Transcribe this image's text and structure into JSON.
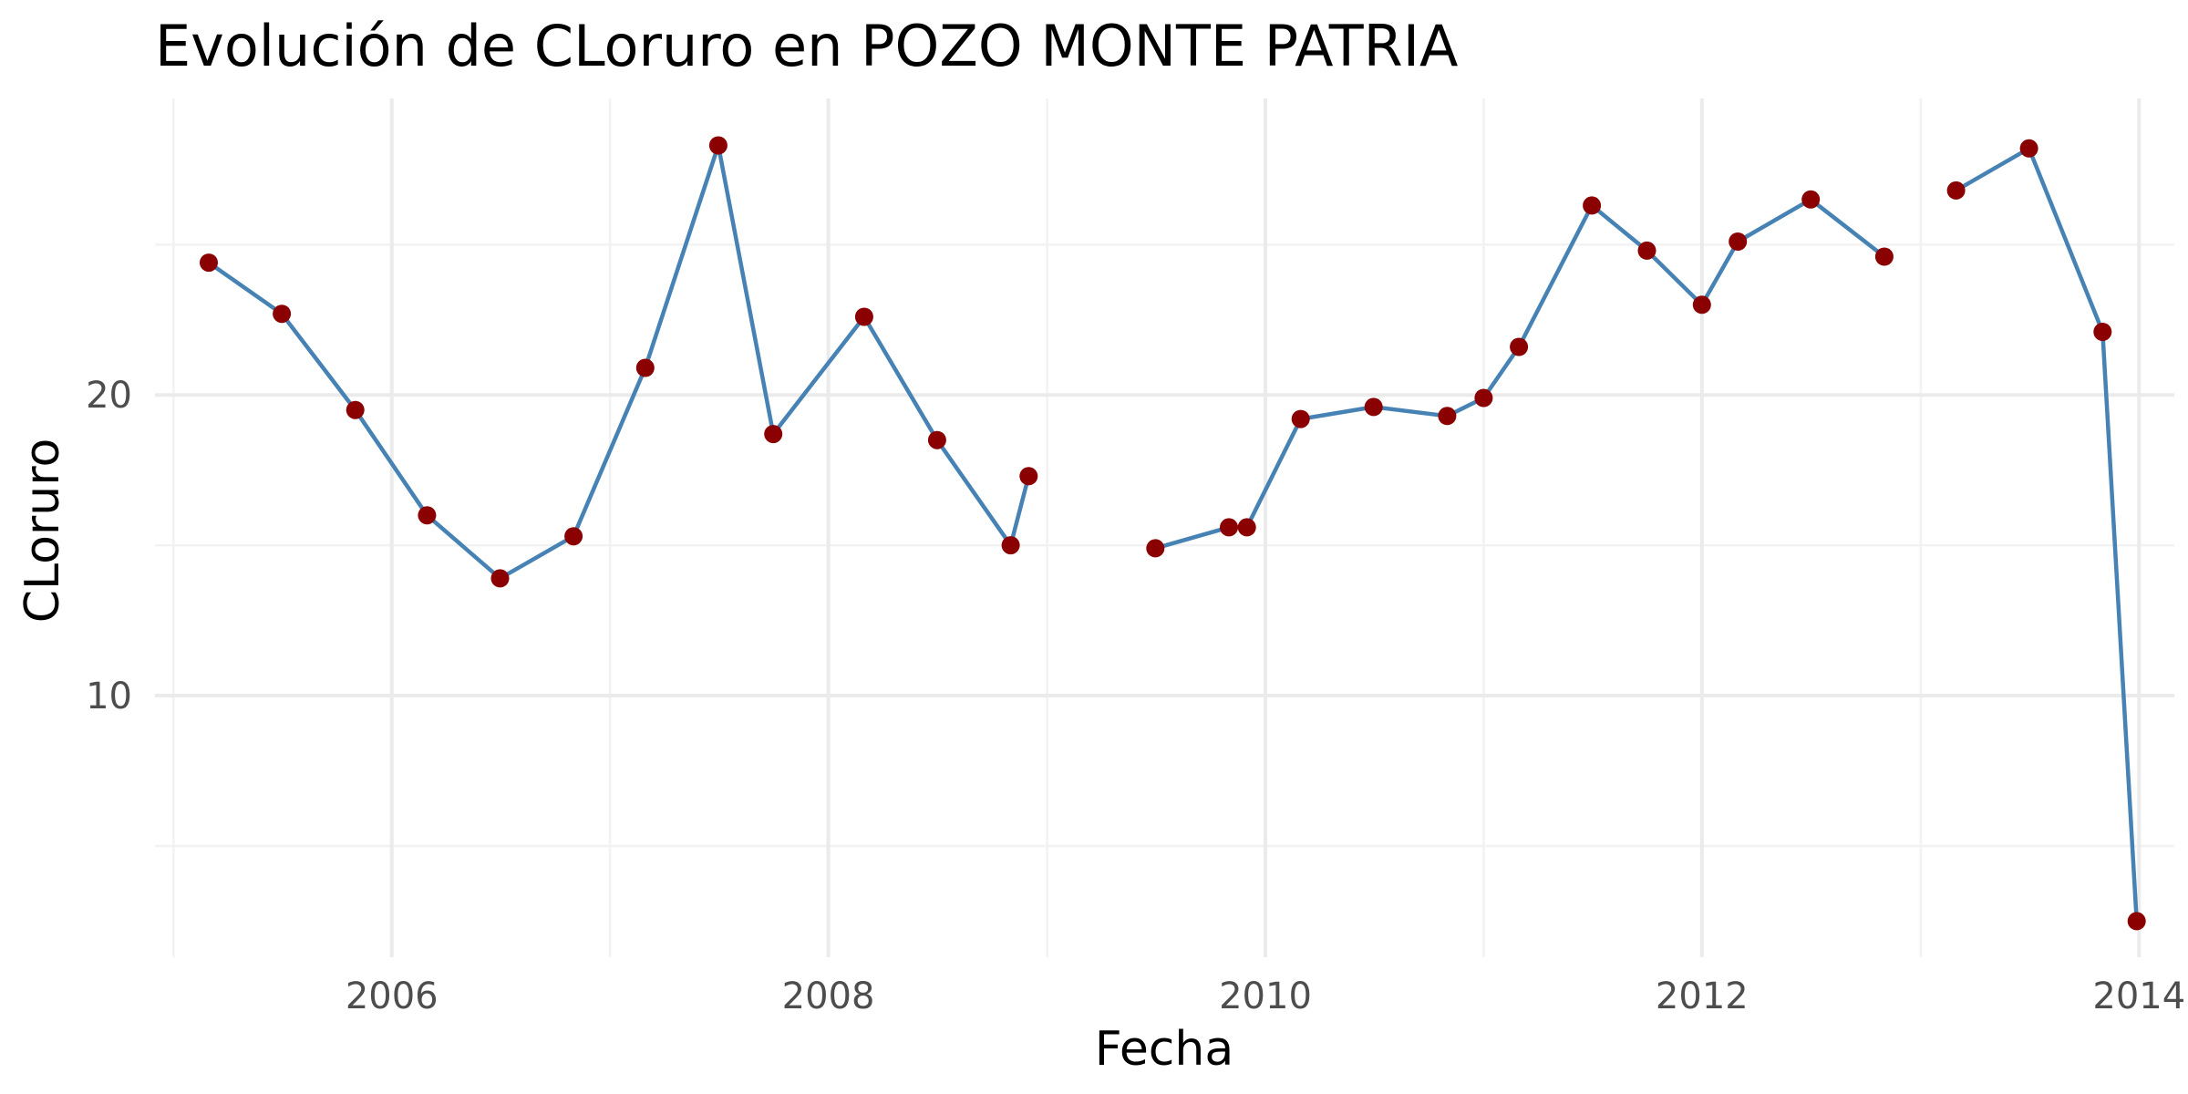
{
  "chart_data": {
    "type": "line",
    "title": "Evolución de CLoruro en POZO MONTE PATRIA",
    "xlabel": "Fecha",
    "ylabel": "CLoruro",
    "x_ticks": [
      "2006",
      "2008",
      "2010",
      "2012",
      "2014"
    ],
    "y_ticks": [
      "10",
      "20"
    ],
    "xlim": [
      "2004-12-01",
      "2014-03-01"
    ],
    "ylim": [
      1.3,
      29.8
    ],
    "grid": true,
    "line_color": "#4682b4",
    "point_color": "#8b0000",
    "segments": [
      [
        {
          "x": "2005-03-01",
          "y": 24.4
        },
        {
          "x": "2005-07-01",
          "y": 22.7
        },
        {
          "x": "2005-11-01",
          "y": 19.5
        },
        {
          "x": "2006-03-01",
          "y": 16.0
        },
        {
          "x": "2006-07-01",
          "y": 13.9
        },
        {
          "x": "2006-11-01",
          "y": 15.3
        },
        {
          "x": "2007-03-01",
          "y": 20.9
        },
        {
          "x": "2007-07-01",
          "y": 28.3
        },
        {
          "x": "2007-10-01",
          "y": 18.7
        },
        {
          "x": "2008-03-01",
          "y": 22.6
        },
        {
          "x": "2008-07-01",
          "y": 18.5
        },
        {
          "x": "2008-11-01",
          "y": 15.0
        },
        {
          "x": "2008-12-01",
          "y": 17.3
        }
      ],
      [
        {
          "x": "2009-07-01",
          "y": 14.9
        },
        {
          "x": "2009-11-01",
          "y": 15.6
        },
        {
          "x": "2009-12-01",
          "y": 15.6
        },
        {
          "x": "2010-03-01",
          "y": 19.2
        },
        {
          "x": "2010-07-01",
          "y": 19.6
        },
        {
          "x": "2010-11-01",
          "y": 19.3
        },
        {
          "x": "2011-01-01",
          "y": 19.9
        },
        {
          "x": "2011-03-01",
          "y": 21.6
        },
        {
          "x": "2011-07-01",
          "y": 26.3
        },
        {
          "x": "2011-10-01",
          "y": 24.8
        },
        {
          "x": "2012-01-01",
          "y": 23.0
        },
        {
          "x": "2012-03-01",
          "y": 25.1
        },
        {
          "x": "2012-07-01",
          "y": 26.5
        },
        {
          "x": "2012-11-01",
          "y": 24.6
        }
      ],
      [
        {
          "x": "2013-03-01",
          "y": 26.8
        },
        {
          "x": "2013-07-01",
          "y": 28.2
        },
        {
          "x": "2013-11-01",
          "y": 22.1
        },
        {
          "x": "2013-12-28",
          "y": 2.5
        }
      ]
    ]
  }
}
